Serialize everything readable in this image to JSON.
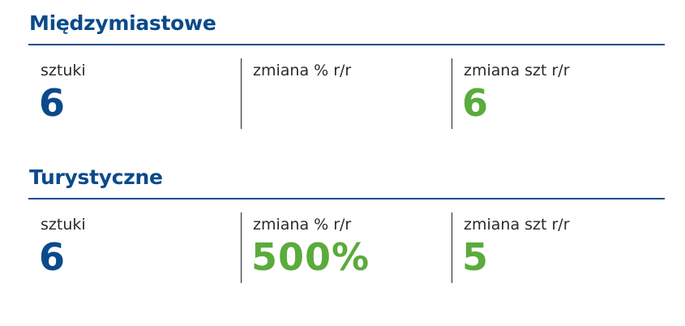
{
  "sections": [
    {
      "title": "Międzymiastowe",
      "stats": [
        {
          "label": "sztuki",
          "value": "6"
        },
        {
          "label": "zmiana % r/r"
        },
        {
          "label": "zmiana szt r/r",
          "value": "6"
        }
      ]
    },
    {
      "title": "Turystyczne",
      "stats": [
        {
          "label": "sztuki",
          "value": "6"
        },
        {
          "label": "zmiana % r/r",
          "value": "500%"
        },
        {
          "label": "zmiana szt r/r",
          "value": "5"
        }
      ]
    }
  ]
}
